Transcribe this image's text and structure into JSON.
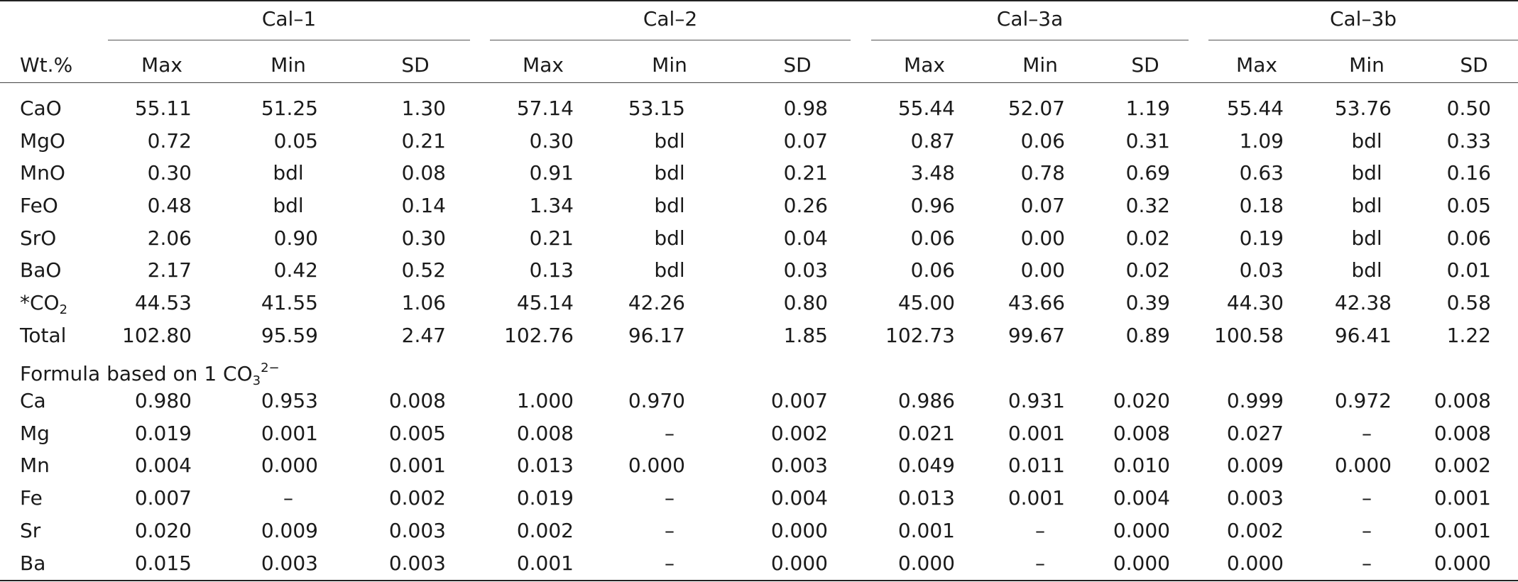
{
  "header": {
    "groups": [
      "Cal–1",
      "Cal–2",
      "Cal–3a",
      "Cal–3b"
    ],
    "row_label": "Wt.%",
    "subcolumns": [
      "Max",
      "Min",
      "SD",
      "Max",
      "Min",
      "SD",
      "Max",
      "Min",
      "SD",
      "Max",
      "Min",
      "SD"
    ]
  },
  "oxides": [
    {
      "label": "CaO",
      "values": [
        "55.11",
        "51.25",
        "1.30",
        "57.14",
        "53.15",
        "0.98",
        "55.44",
        "52.07",
        "1.19",
        "55.44",
        "53.76",
        "0.50"
      ]
    },
    {
      "label": "MgO",
      "values": [
        "0.72",
        "0.05",
        "0.21",
        "0.30",
        "bdl",
        "0.07",
        "0.87",
        "0.06",
        "0.31",
        "1.09",
        "bdl",
        "0.33"
      ]
    },
    {
      "label": "MnO",
      "values": [
        "0.30",
        "bdl",
        "0.08",
        "0.91",
        "bdl",
        "0.21",
        "3.48",
        "0.78",
        "0.69",
        "0.63",
        "bdl",
        "0.16"
      ]
    },
    {
      "label": "FeO",
      "values": [
        "0.48",
        "bdl",
        "0.14",
        "1.34",
        "bdl",
        "0.26",
        "0.96",
        "0.07",
        "0.32",
        "0.18",
        "bdl",
        "0.05"
      ]
    },
    {
      "label": "SrO",
      "values": [
        "2.06",
        "0.90",
        "0.30",
        "0.21",
        "bdl",
        "0.04",
        "0.06",
        "0.00",
        "0.02",
        "0.19",
        "bdl",
        "0.06"
      ]
    },
    {
      "label": "BaO",
      "values": [
        "2.17",
        "0.42",
        "0.52",
        "0.13",
        "bdl",
        "0.03",
        "0.06",
        "0.00",
        "0.02",
        "0.03",
        "bdl",
        "0.01"
      ]
    },
    {
      "label_main": "*CO",
      "label_sub": "2",
      "values": [
        "44.53",
        "41.55",
        "1.06",
        "45.14",
        "42.26",
        "0.80",
        "45.00",
        "43.66",
        "0.39",
        "44.30",
        "42.38",
        "0.58"
      ]
    },
    {
      "label": "Total",
      "values": [
        "102.80",
        "95.59",
        "2.47",
        "102.76",
        "96.17",
        "1.85",
        "102.73",
        "99.67",
        "0.89",
        "100.58",
        "96.41",
        "1.22"
      ]
    }
  ],
  "formula_heading": {
    "text": "Formula based on 1 CO",
    "sub": "3",
    "sup": "2−"
  },
  "formula": [
    {
      "label": "Ca",
      "values": [
        "0.980",
        "0.953",
        "0.008",
        "1.000",
        "0.970",
        "0.007",
        "0.986",
        "0.931",
        "0.020",
        "0.999",
        "0.972",
        "0.008"
      ]
    },
    {
      "label": "Mg",
      "values": [
        "0.019",
        "0.001",
        "0.005",
        "0.008",
        "–",
        "0.002",
        "0.021",
        "0.001",
        "0.008",
        "0.027",
        "–",
        "0.008"
      ]
    },
    {
      "label": "Mn",
      "values": [
        "0.004",
        "0.000",
        "0.001",
        "0.013",
        "0.000",
        "0.003",
        "0.049",
        "0.011",
        "0.010",
        "0.009",
        "0.000",
        "0.002"
      ]
    },
    {
      "label": "Fe",
      "values": [
        "0.007",
        "–",
        "0.002",
        "0.019",
        "–",
        "0.004",
        "0.013",
        "0.001",
        "0.004",
        "0.003",
        "–",
        "0.001"
      ]
    },
    {
      "label": "Sr",
      "values": [
        "0.020",
        "0.009",
        "0.003",
        "0.002",
        "–",
        "0.000",
        "0.001",
        "–",
        "0.000",
        "0.002",
        "–",
        "0.001"
      ]
    },
    {
      "label": "Ba",
      "values": [
        "0.015",
        "0.003",
        "0.003",
        "0.001",
        "–",
        "0.000",
        "0.000",
        "–",
        "0.000",
        "0.000",
        "–",
        "0.000"
      ]
    }
  ]
}
